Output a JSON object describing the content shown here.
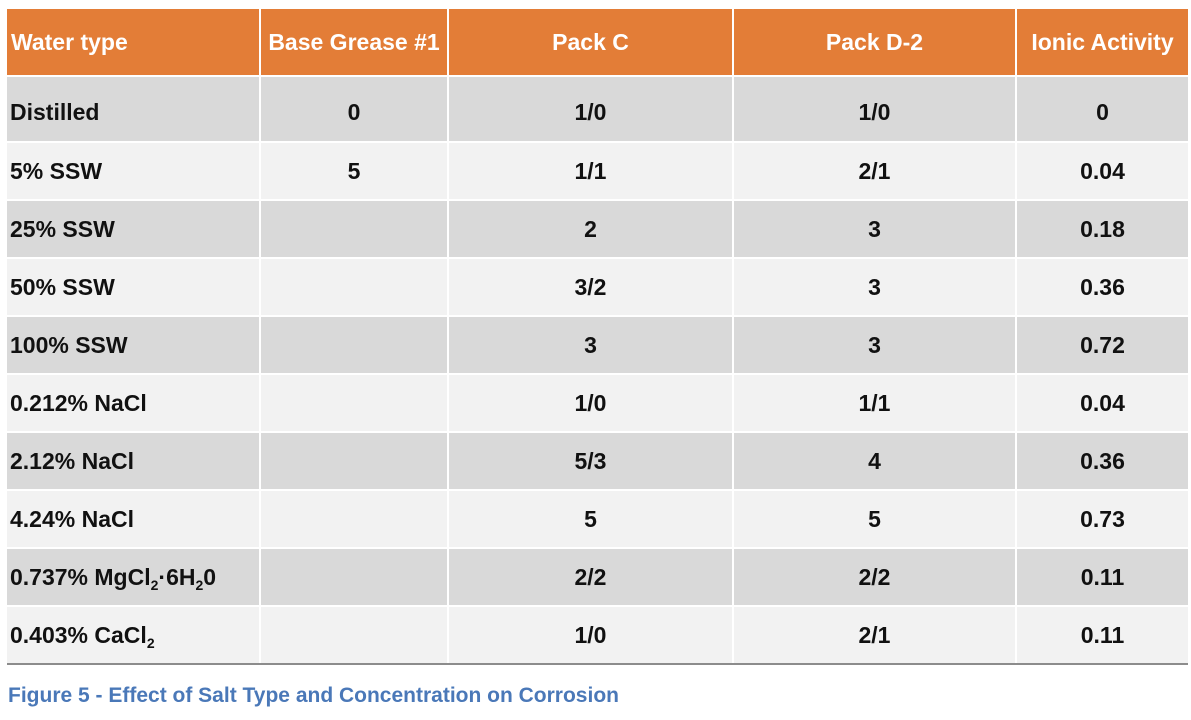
{
  "table": {
    "headers": [
      "Water type",
      "Base Grease #1",
      "Pack C",
      "Pack D-2",
      "Ionic Activity"
    ],
    "rows": [
      {
        "water": "Distilled",
        "base": "0",
        "packc": "1/0",
        "packd": "1/0",
        "ionic": "0"
      },
      {
        "water": "5% SSW",
        "base": "5",
        "packc": "1/1",
        "packd": "2/1",
        "ionic": "0.04"
      },
      {
        "water": "25% SSW",
        "base": "",
        "packc": "2",
        "packd": "3",
        "ionic": "0.18"
      },
      {
        "water": "50% SSW",
        "base": "",
        "packc": "3/2",
        "packd": "3",
        "ionic": "0.36"
      },
      {
        "water": "100% SSW",
        "base": "",
        "packc": "3",
        "packd": "3",
        "ionic": "0.72"
      },
      {
        "water": "0.212% NaCl",
        "base": "",
        "packc": "1/0",
        "packd": "1/1",
        "ionic": "0.04"
      },
      {
        "water": "2.12% NaCl",
        "base": "",
        "packc": "5/3",
        "packd": "4",
        "ionic": "0.36"
      },
      {
        "water": "4.24% NaCl",
        "base": "",
        "packc": "5",
        "packd": "5",
        "ionic": "0.73"
      },
      {
        "water_parts": [
          "0.737% MgCl",
          "2",
          "·6H",
          "2",
          "0"
        ],
        "base": "",
        "packc": "2/2",
        "packd": "2/2",
        "ionic": "0.11"
      },
      {
        "water_parts": [
          "0.403% CaCl",
          "2"
        ],
        "base": "",
        "packc": "1/0",
        "packd": "2/1",
        "ionic": "0.11"
      }
    ]
  },
  "caption": "Figure 5 - Effect of Salt Type and Concentration on Corrosion"
}
